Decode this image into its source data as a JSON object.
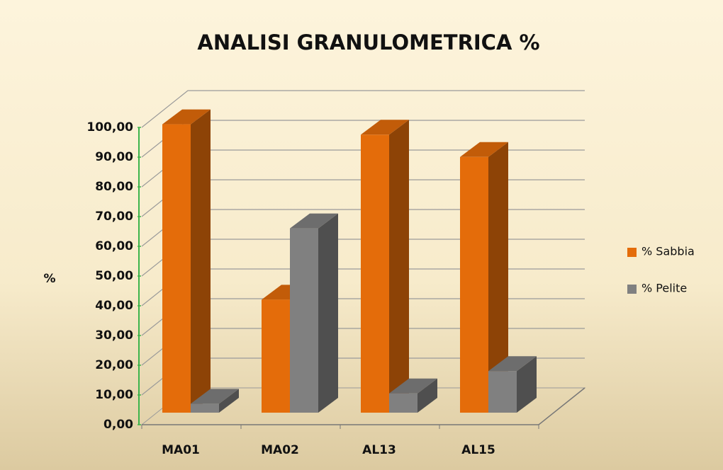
{
  "chart_data": {
    "type": "bar3d",
    "title": "ANALISI GRANULOMETRICA %",
    "y_label": "%",
    "categories": [
      "MA01",
      "MA02",
      "AL13",
      "AL15"
    ],
    "series": [
      {
        "name": "% Sabbia",
        "color": "#e46c0a",
        "values": [
          97,
          38,
          93.5,
          86
        ]
      },
      {
        "name": "% Pelite",
        "color": "#808080",
        "values": [
          3,
          62,
          6.5,
          14
        ]
      }
    ],
    "ylim": [
      0,
      100
    ],
    "yticks": [
      {
        "value": 0,
        "label": "0,00"
      },
      {
        "value": 10,
        "label": "10,00"
      },
      {
        "value": 20,
        "label": "20,00"
      },
      {
        "value": 30,
        "label": "30,00"
      },
      {
        "value": 40,
        "label": "40,00"
      },
      {
        "value": 50,
        "label": "50,00"
      },
      {
        "value": 60,
        "label": "60,00"
      },
      {
        "value": 70,
        "label": "70,00"
      },
      {
        "value": 80,
        "label": "80,00"
      },
      {
        "value": 90,
        "label": "90,00"
      },
      {
        "value": 100,
        "label": "100,00"
      }
    ],
    "grid": true,
    "legend": "right"
  }
}
